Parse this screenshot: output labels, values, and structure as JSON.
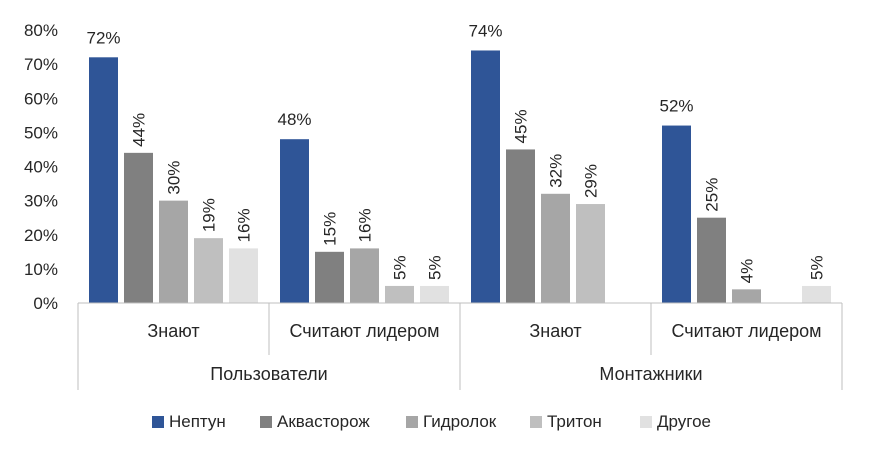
{
  "chart_data": {
    "type": "bar",
    "y_ticks": [
      "0%",
      "10%",
      "20%",
      "30%",
      "40%",
      "50%",
      "60%",
      "70%",
      "80%"
    ],
    "ylim": [
      0,
      80
    ],
    "grid": false,
    "legend_position": "bottom",
    "groups": [
      {
        "label": "Пользователи",
        "categories": [
          "Знают",
          "Считают лидером"
        ]
      },
      {
        "label": "Монтажники",
        "categories": [
          "Знают",
          "Считают лидером"
        ]
      }
    ],
    "series": [
      {
        "name": "Нептун",
        "color": "#2F5597",
        "values": [
          72,
          48,
          74,
          52
        ]
      },
      {
        "name": "Аквасторож",
        "color": "#808080",
        "values": [
          44,
          15,
          45,
          25
        ]
      },
      {
        "name": "Гидролок",
        "color": "#A6A6A6",
        "values": [
          30,
          16,
          32,
          4
        ]
      },
      {
        "name": "Тритон",
        "color": "#BFBFBF",
        "values": [
          19,
          5,
          29,
          null
        ]
      },
      {
        "name": "Другое",
        "color": "#E1E1E1",
        "values": [
          16,
          5,
          null,
          5
        ]
      }
    ],
    "data_labels": [
      [
        "72%",
        "48%",
        "74%",
        "52%"
      ],
      [
        "44%",
        "15%",
        "45%",
        "25%"
      ],
      [
        "30%",
        "16%",
        "32%",
        "4%"
      ],
      [
        "19%",
        "5%",
        "29%",
        ""
      ],
      [
        "16%",
        "5%",
        "",
        "5%"
      ]
    ]
  }
}
